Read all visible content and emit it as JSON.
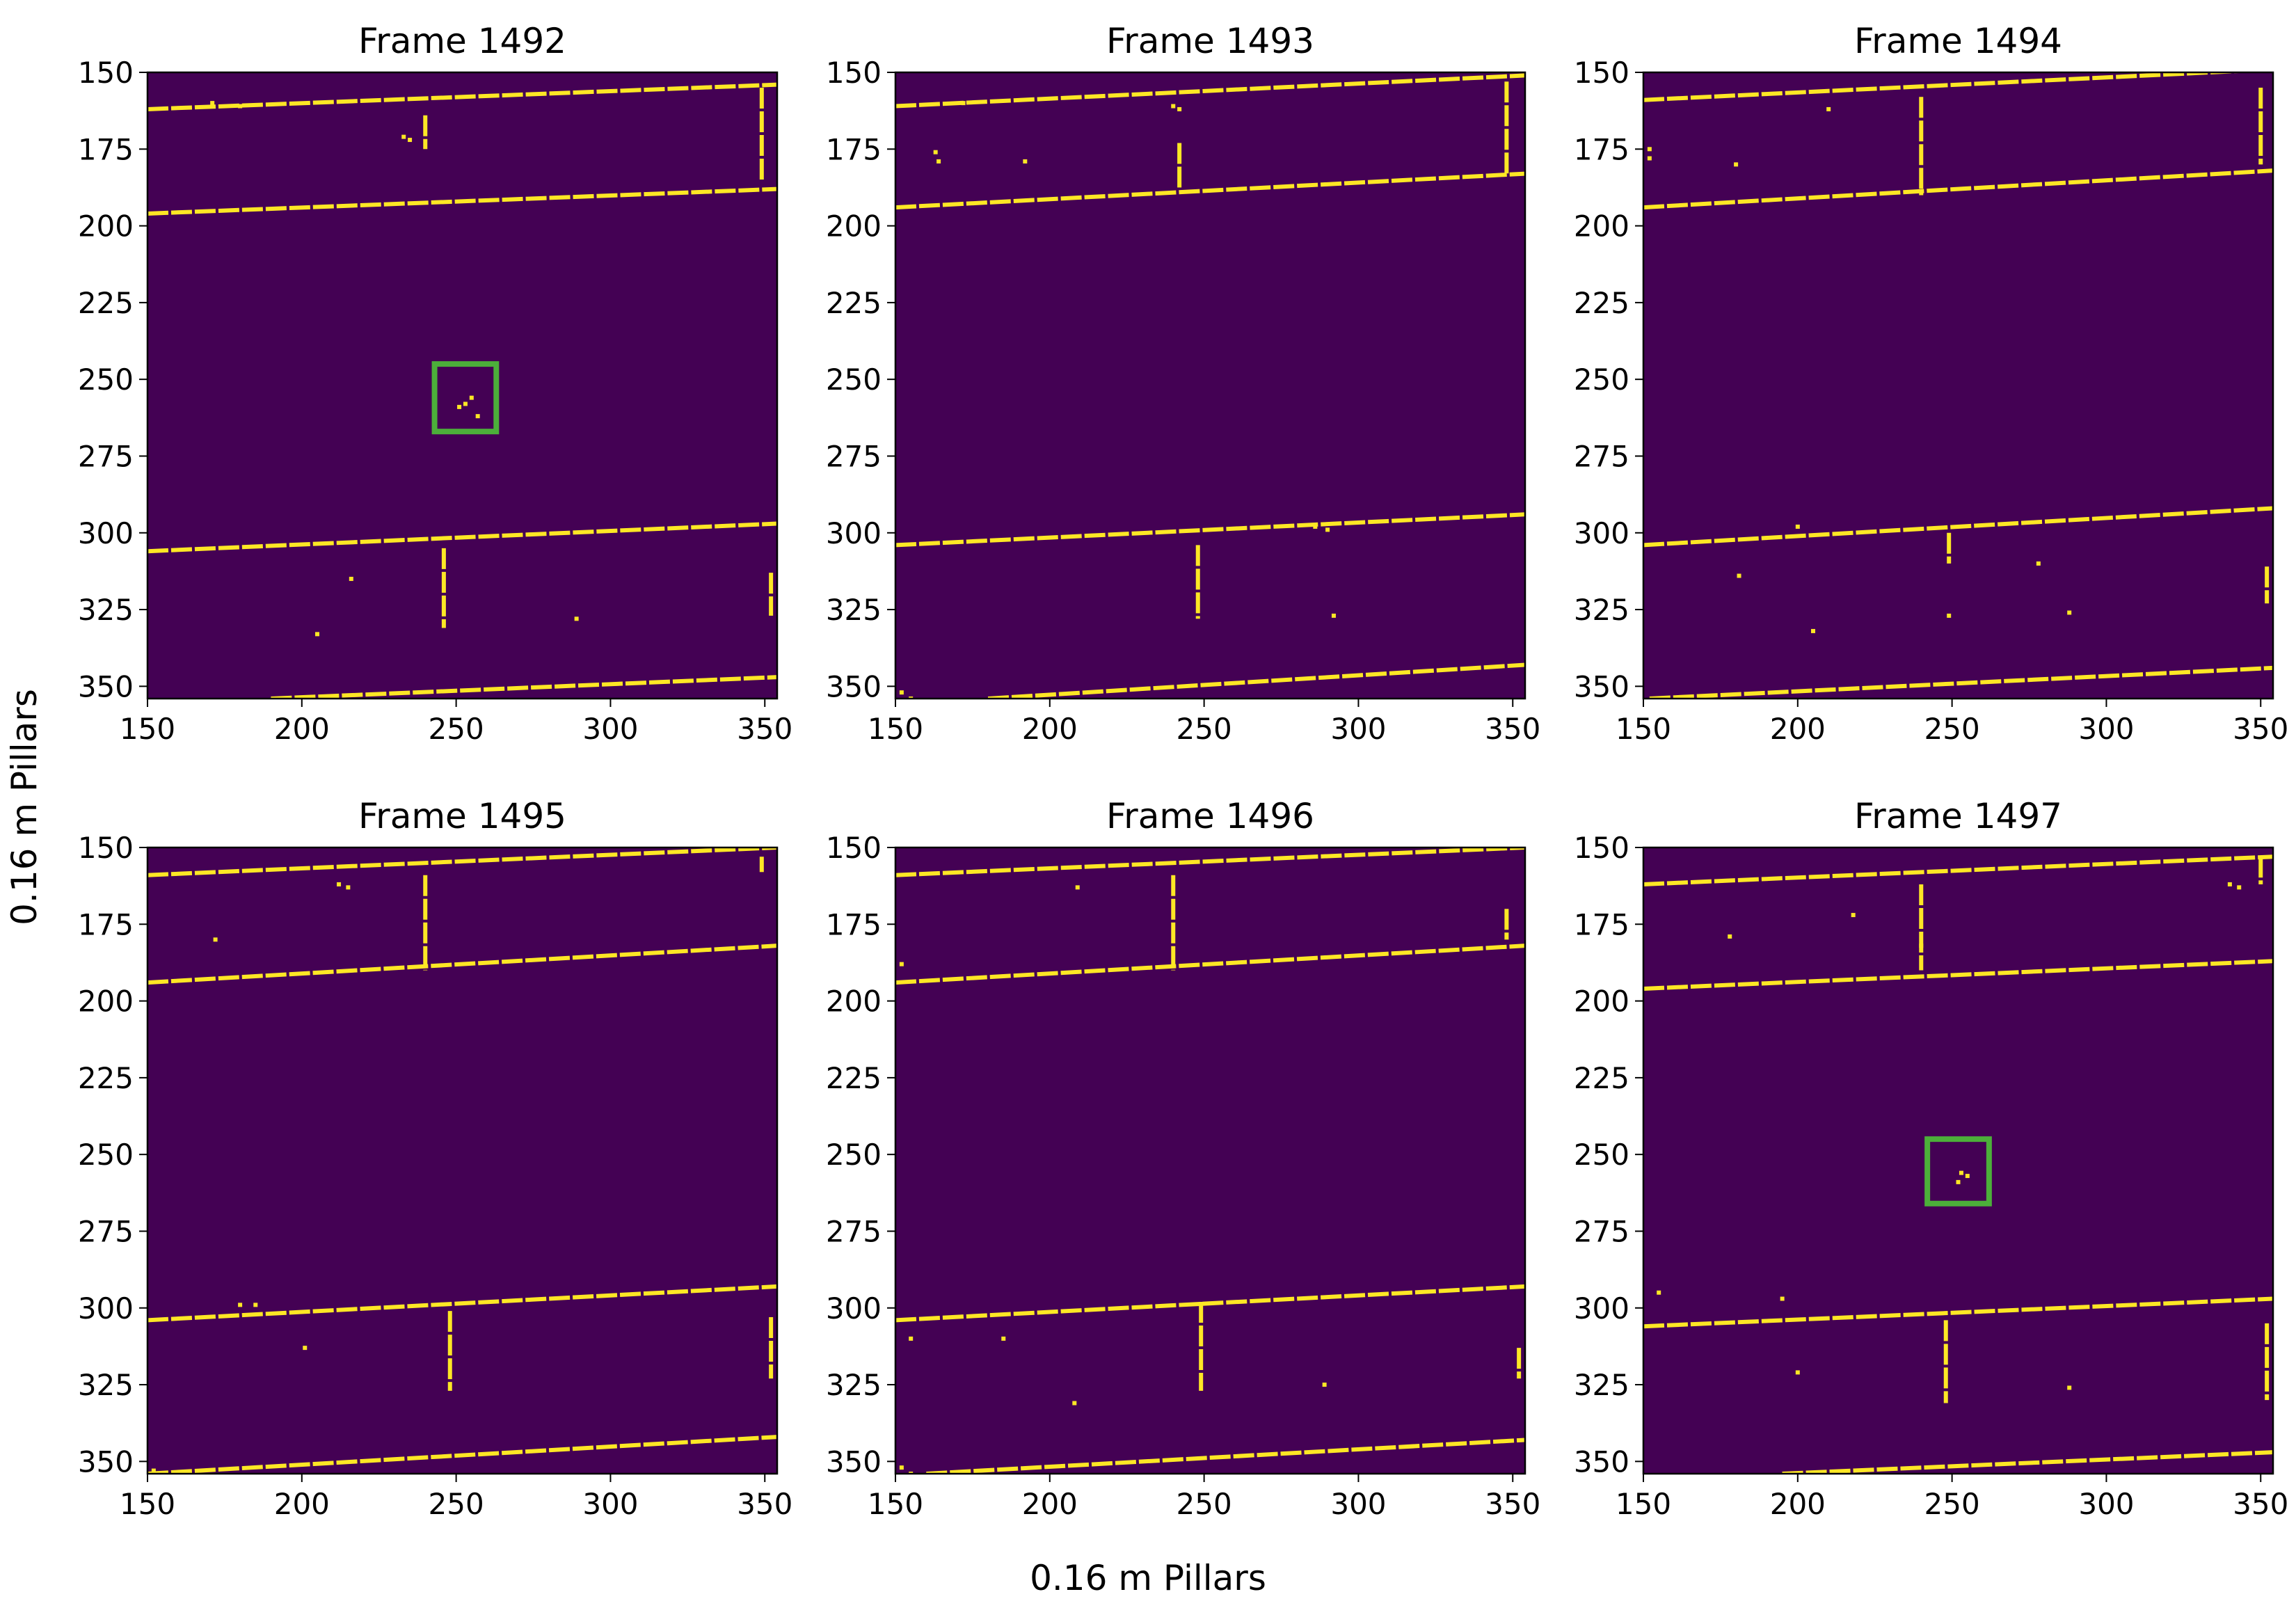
{
  "figure": {
    "xlabel": "0.16 m Pillars",
    "ylabel": "0.16 m Pillars",
    "background_color": "#440154",
    "point_color": "#fde725",
    "box_color": "#4caf3a"
  },
  "chart_data": [
    {
      "type": "heatmap",
      "title": "Frame 1492",
      "xlim": [
        150,
        354
      ],
      "ylim": [
        354,
        150
      ],
      "xticks": [
        150,
        200,
        250,
        300,
        350
      ],
      "yticks": [
        150,
        175,
        200,
        225,
        250,
        275,
        300,
        325,
        350
      ],
      "lines": [
        {
          "x": [
            150,
            354
          ],
          "y": [
            196,
            188
          ]
        },
        {
          "x": [
            150,
            354
          ],
          "y": [
            306,
            297
          ]
        },
        {
          "x": [
            150,
            354
          ],
          "y": [
            162,
            154
          ]
        },
        {
          "x": [
            190,
            354
          ],
          "y": [
            354,
            347
          ]
        },
        {
          "x": [
            240,
            240
          ],
          "y": [
            164,
            175
          ]
        },
        {
          "x": [
            246,
            246
          ],
          "y": [
            305,
            331
          ]
        },
        {
          "x": [
            349,
            349
          ],
          "y": [
            155,
            185
          ]
        },
        {
          "x": [
            352,
            352
          ],
          "y": [
            313,
            327
          ]
        }
      ],
      "dots": [
        [
          233,
          171
        ],
        [
          235,
          172
        ],
        [
          216,
          315
        ],
        [
          205,
          333
        ],
        [
          289,
          328
        ],
        [
          253,
          258
        ],
        [
          255,
          256
        ],
        [
          251,
          259
        ],
        [
          257,
          262
        ],
        [
          171,
          160
        ],
        [
          180,
          161
        ]
      ],
      "boxes": [
        {
          "x": [
            243,
            263
          ],
          "y": [
            245,
            267
          ]
        }
      ]
    },
    {
      "type": "heatmap",
      "title": "Frame 1493",
      "xlim": [
        150,
        354
      ],
      "ylim": [
        354,
        150
      ],
      "xticks": [
        150,
        200,
        250,
        300,
        350
      ],
      "yticks": [
        150,
        175,
        200,
        225,
        250,
        275,
        300,
        325,
        350
      ],
      "lines": [
        {
          "x": [
            150,
            354
          ],
          "y": [
            194,
            183
          ]
        },
        {
          "x": [
            150,
            354
          ],
          "y": [
            304,
            294
          ]
        },
        {
          "x": [
            150,
            354
          ],
          "y": [
            161,
            151
          ]
        },
        {
          "x": [
            180,
            354
          ],
          "y": [
            354,
            343
          ]
        },
        {
          "x": [
            242,
            242
          ],
          "y": [
            173,
            188
          ]
        },
        {
          "x": [
            248,
            248
          ],
          "y": [
            304,
            328
          ]
        },
        {
          "x": [
            348,
            348
          ],
          "y": [
            153,
            183
          ]
        }
      ],
      "dots": [
        [
          163,
          176
        ],
        [
          164,
          179
        ],
        [
          192,
          179
        ],
        [
          240,
          161
        ],
        [
          242,
          162
        ],
        [
          286,
          298
        ],
        [
          290,
          299
        ],
        [
          292,
          327
        ],
        [
          152,
          352
        ],
        [
          155,
          354
        ],
        [
          172,
          160
        ]
      ],
      "boxes": []
    },
    {
      "type": "heatmap",
      "title": "Frame 1494",
      "xlim": [
        150,
        354
      ],
      "ylim": [
        354,
        150
      ],
      "xticks": [
        150,
        200,
        250,
        300,
        350
      ],
      "yticks": [
        150,
        175,
        200,
        225,
        250,
        275,
        300,
        325,
        350
      ],
      "lines": [
        {
          "x": [
            150,
            354
          ],
          "y": [
            194,
            182
          ]
        },
        {
          "x": [
            150,
            354
          ],
          "y": [
            304,
            292
          ]
        },
        {
          "x": [
            150,
            354
          ],
          "y": [
            159,
            149
          ]
        },
        {
          "x": [
            152,
            354
          ],
          "y": [
            354,
            344
          ]
        },
        {
          "x": [
            240,
            240
          ],
          "y": [
            158,
            190
          ]
        },
        {
          "x": [
            249,
            249
          ],
          "y": [
            300,
            310
          ]
        },
        {
          "x": [
            350,
            350
          ],
          "y": [
            155,
            180
          ]
        },
        {
          "x": [
            352,
            352
          ],
          "y": [
            311,
            323
          ]
        }
      ],
      "dots": [
        [
          180,
          180
        ],
        [
          181,
          314
        ],
        [
          200,
          298
        ],
        [
          205,
          332
        ],
        [
          249,
          327
        ],
        [
          278,
          310
        ],
        [
          288,
          326
        ],
        [
          210,
          162
        ],
        [
          152,
          175
        ],
        [
          152,
          178
        ]
      ],
      "boxes": []
    },
    {
      "type": "heatmap",
      "title": "Frame 1495",
      "xlim": [
        150,
        354
      ],
      "ylim": [
        354,
        150
      ],
      "xticks": [
        150,
        200,
        250,
        300,
        350
      ],
      "yticks": [
        150,
        175,
        200,
        225,
        250,
        275,
        300,
        325,
        350
      ],
      "lines": [
        {
          "x": [
            150,
            354
          ],
          "y": [
            194,
            182
          ]
        },
        {
          "x": [
            150,
            354
          ],
          "y": [
            304,
            293
          ]
        },
        {
          "x": [
            150,
            354
          ],
          "y": [
            159,
            150
          ]
        },
        {
          "x": [
            150,
            354
          ],
          "y": [
            354,
            342
          ]
        },
        {
          "x": [
            240,
            240
          ],
          "y": [
            159,
            190
          ]
        },
        {
          "x": [
            248,
            248
          ],
          "y": [
            301,
            327
          ]
        },
        {
          "x": [
            349,
            349
          ],
          "y": [
            153,
            158
          ]
        },
        {
          "x": [
            352,
            352
          ],
          "y": [
            303,
            323
          ]
        }
      ],
      "dots": [
        [
          172,
          180
        ],
        [
          201,
          313
        ],
        [
          180,
          299
        ],
        [
          185,
          299
        ],
        [
          212,
          162
        ],
        [
          215,
          163
        ],
        [
          152,
          353
        ],
        [
          155,
          354
        ]
      ],
      "boxes": []
    },
    {
      "type": "heatmap",
      "title": "Frame 1496",
      "xlim": [
        150,
        354
      ],
      "ylim": [
        354,
        150
      ],
      "xticks": [
        150,
        200,
        250,
        300,
        350
      ],
      "yticks": [
        150,
        175,
        200,
        225,
        250,
        275,
        300,
        325,
        350
      ],
      "lines": [
        {
          "x": [
            150,
            354
          ],
          "y": [
            194,
            182
          ]
        },
        {
          "x": [
            150,
            354
          ],
          "y": [
            304,
            293
          ]
        },
        {
          "x": [
            150,
            354
          ],
          "y": [
            159,
            150
          ]
        },
        {
          "x": [
            160,
            354
          ],
          "y": [
            354,
            343
          ]
        },
        {
          "x": [
            240,
            240
          ],
          "y": [
            159,
            190
          ]
        },
        {
          "x": [
            249,
            249
          ],
          "y": [
            298,
            327
          ]
        },
        {
          "x": [
            348,
            348
          ],
          "y": [
            170,
            180
          ]
        },
        {
          "x": [
            352,
            352
          ],
          "y": [
            313,
            323
          ]
        }
      ],
      "dots": [
        [
          155,
          310
        ],
        [
          185,
          310
        ],
        [
          208,
          331
        ],
        [
          209,
          163
        ],
        [
          289,
          325
        ],
        [
          152,
          352
        ],
        [
          155,
          354
        ],
        [
          152,
          188
        ]
      ],
      "boxes": []
    },
    {
      "type": "heatmap",
      "title": "Frame 1497",
      "xlim": [
        150,
        354
      ],
      "ylim": [
        354,
        150
      ],
      "xticks": [
        150,
        200,
        250,
        300,
        350
      ],
      "yticks": [
        150,
        175,
        200,
        225,
        250,
        275,
        300,
        325,
        350
      ],
      "lines": [
        {
          "x": [
            150,
            354
          ],
          "y": [
            196,
            187
          ]
        },
        {
          "x": [
            150,
            354
          ],
          "y": [
            306,
            297
          ]
        },
        {
          "x": [
            150,
            354
          ],
          "y": [
            162,
            153
          ]
        },
        {
          "x": [
            195,
            354
          ],
          "y": [
            354,
            347
          ]
        },
        {
          "x": [
            240,
            240
          ],
          "y": [
            162,
            190
          ]
        },
        {
          "x": [
            248,
            248
          ],
          "y": [
            304,
            331
          ]
        },
        {
          "x": [
            350,
            350
          ],
          "y": [
            153,
            162
          ]
        },
        {
          "x": [
            352,
            352
          ],
          "y": [
            305,
            330
          ]
        }
      ],
      "dots": [
        [
          155,
          295
        ],
        [
          195,
          297
        ],
        [
          200,
          321
        ],
        [
          218,
          172
        ],
        [
          178,
          179
        ],
        [
          240,
          182
        ],
        [
          288,
          326
        ],
        [
          253,
          256
        ],
        [
          255,
          257
        ],
        [
          252,
          259
        ],
        [
          340,
          162
        ],
        [
          343,
          163
        ]
      ],
      "boxes": [
        {
          "x": [
            242,
            262
          ],
          "y": [
            245,
            266
          ]
        }
      ]
    }
  ]
}
